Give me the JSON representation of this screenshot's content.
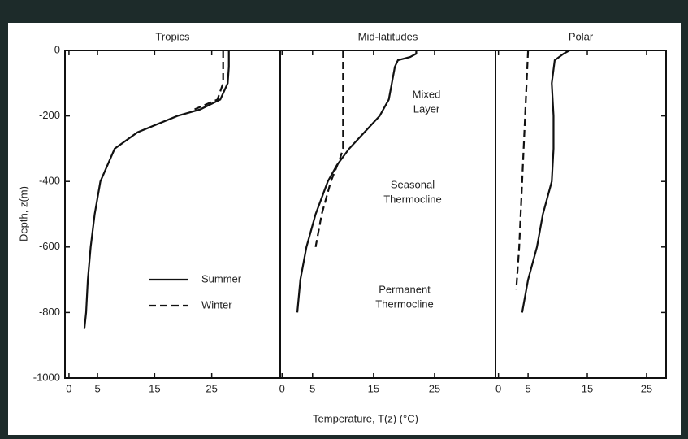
{
  "chart_data": [
    {
      "type": "line",
      "title": "Tropics",
      "ylabel": "Depth, z(m)",
      "xlim": [
        -0.7,
        37
      ],
      "xticks": [
        0,
        5,
        15,
        25
      ],
      "ylim": [
        -1000,
        0
      ],
      "yticks": [
        -1000,
        -800,
        -600,
        -400,
        -200,
        0
      ],
      "legend": "lower-left",
      "series": [
        {
          "name": "Summer",
          "color": "#111111",
          "dash": false,
          "x": [
            28,
            28,
            27.8,
            26.5,
            23,
            19,
            12,
            8,
            5.5,
            4.5,
            3.8,
            3.3,
            3,
            2.7
          ],
          "y": [
            0,
            -50,
            -100,
            -150,
            -180,
            -200,
            -250,
            -300,
            -400,
            -500,
            -600,
            -700,
            -800,
            -850
          ]
        },
        {
          "name": "Winter",
          "color": "#111111",
          "dash": true,
          "x": [
            27,
            27,
            27,
            26,
            22
          ],
          "y": [
            0,
            -50,
            -100,
            -150,
            -180
          ]
        }
      ]
    },
    {
      "type": "line",
      "title": "Mid-latitudes",
      "xlabel": "Temperature, T(z) (°C)",
      "xlim": [
        -0.3,
        35
      ],
      "xticks": [
        0,
        5,
        15,
        25
      ],
      "ylim": [
        -1000,
        0
      ],
      "annotations": [
        [
          "Mixed",
          "Layer"
        ],
        [
          "Seasonal",
          "Thermocline"
        ],
        [
          "Permanent",
          "Thermocline"
        ]
      ],
      "series": [
        {
          "name": "Summer",
          "color": "#111111",
          "dash": false,
          "x": [
            22,
            22,
            21,
            19,
            18.5,
            18,
            17.5,
            16,
            13.5,
            11,
            9,
            7.5,
            5.5,
            4,
            3,
            2.5
          ],
          "y": [
            0,
            -10,
            -20,
            -30,
            -50,
            -100,
            -150,
            -200,
            -250,
            -300,
            -350,
            -400,
            -500,
            -600,
            -700,
            -800
          ]
        },
        {
          "name": "Winter",
          "color": "#111111",
          "dash": true,
          "x": [
            10,
            10,
            9.5,
            8,
            6.5,
            5.5
          ],
          "y": [
            0,
            -300,
            -330,
            -400,
            -500,
            -600
          ]
        }
      ]
    },
    {
      "type": "line",
      "title": "Polar",
      "xlim": [
        -0.5,
        28.3
      ],
      "xticks": [
        0,
        5,
        15,
        25
      ],
      "ylim": [
        -1000,
        0
      ],
      "series": [
        {
          "name": "Summer",
          "color": "#111111",
          "dash": false,
          "x": [
            12,
            11,
            9.5,
            9,
            9.3,
            9.3,
            9,
            7.5,
            6.5,
            5,
            4
          ],
          "y": [
            0,
            -10,
            -30,
            -100,
            -200,
            -300,
            -400,
            -500,
            -600,
            -700,
            -800
          ]
        },
        {
          "name": "Winter",
          "color": "#111111",
          "dash": true,
          "x": [
            5,
            4.5,
            4,
            3.5,
            3
          ],
          "y": [
            0,
            -200,
            -400,
            -600,
            -730
          ]
        }
      ]
    }
  ]
}
